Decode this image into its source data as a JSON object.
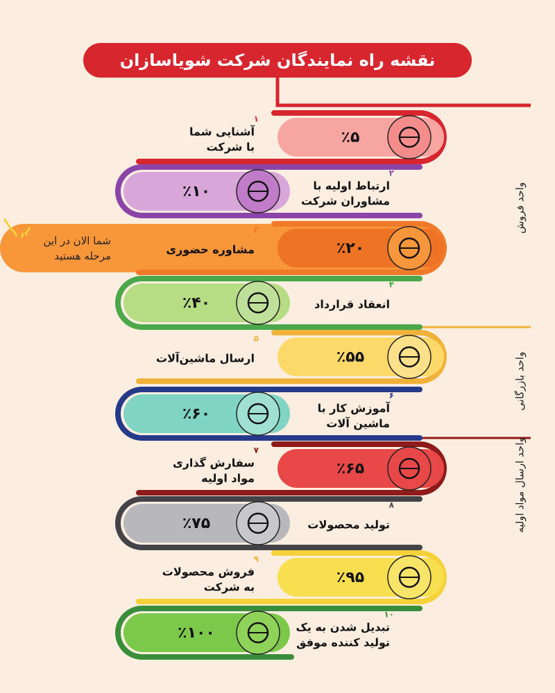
{
  "header": {
    "title": "نقشه راه نمایندگان شرکت شویاسازان"
  },
  "steps": [
    {
      "number": "۱",
      "lines": [
        "آشنایی شما",
        "با شرکت"
      ],
      "percent": "٪۵"
    },
    {
      "number": "۲",
      "lines": [
        "ارتباط اولیه با",
        "مشاوران شرکت"
      ],
      "percent": "٪۱۰"
    },
    {
      "number": "۳",
      "lines": [
        "مشاوره حضوری"
      ],
      "percent": "٪۲۰"
    },
    {
      "number": "۴",
      "lines": [
        "انعقاد قرارداد"
      ],
      "percent": "٪۴۰"
    },
    {
      "number": "۵",
      "lines": [
        "ارسال ماشین‌آلات"
      ],
      "percent": "٪۵۵"
    },
    {
      "number": "۶",
      "lines": [
        "آموزش کار با",
        "ماشین آلات"
      ],
      "percent": "٪۶۰"
    },
    {
      "number": "۷",
      "lines": [
        "سفارش گذاری",
        "مواد اولیه"
      ],
      "percent": "٪۶۵"
    },
    {
      "number": "۸",
      "lines": [
        "تولید محصولات"
      ],
      "percent": "٪۷۵"
    },
    {
      "number": "۹",
      "lines": [
        "فروش محصولات",
        "به شرکت"
      ],
      "percent": "٪۹۵"
    },
    {
      "number": "۱۰",
      "lines": [
        "تبدیل شدن به یک",
        "تولید کننده موفق"
      ],
      "percent": "٪۱۰۰"
    }
  ],
  "units": [
    "واحد فروش",
    "واحد بازرگانی",
    "واحد ارسال مواد اولیه"
  ],
  "note": {
    "lines": [
      "شما الان در این",
      "مرحله هستید"
    ]
  }
}
